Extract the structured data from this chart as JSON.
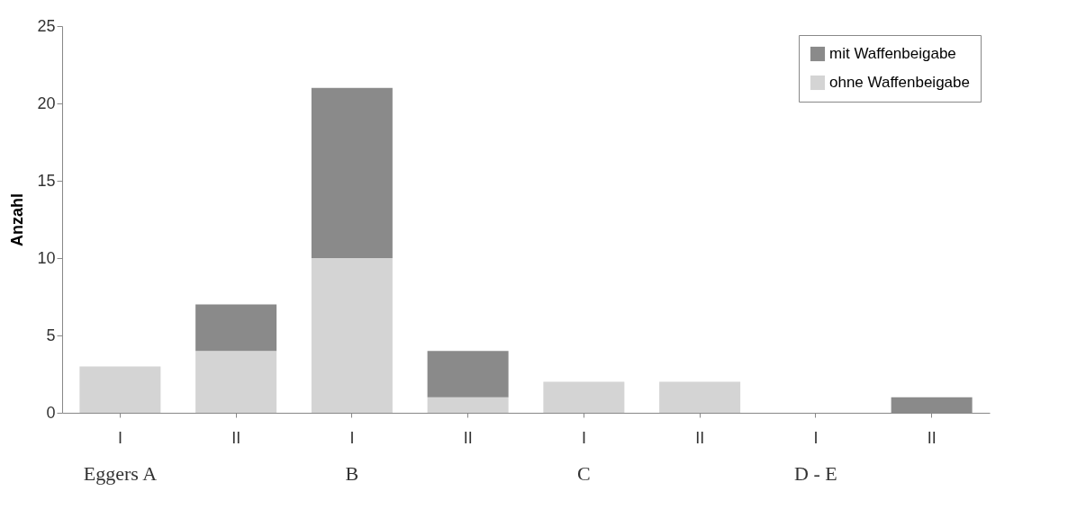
{
  "chart_data": {
    "type": "bar",
    "stacked": true,
    "ylabel": "Anzahl",
    "categories": [
      "I",
      "II",
      "I",
      "II",
      "I",
      "II",
      "I",
      "II"
    ],
    "series": [
      {
        "name": "ohne Waffenbeigabe",
        "color": "#d4d4d4",
        "values": [
          3,
          4,
          10,
          1,
          2,
          2,
          0,
          0
        ]
      },
      {
        "name": "mit Waffenbeigabe",
        "color": "#8a8a8a",
        "values": [
          0,
          3,
          11,
          3,
          0,
          0,
          0,
          1
        ]
      }
    ],
    "ylim": [
      0,
      25
    ],
    "yticks": [
      0,
      5,
      10,
      15,
      20,
      25
    ],
    "grid": false,
    "legend": "top right",
    "annotations": [
      "Eggers A",
      "B",
      "C",
      "D - E"
    ]
  }
}
